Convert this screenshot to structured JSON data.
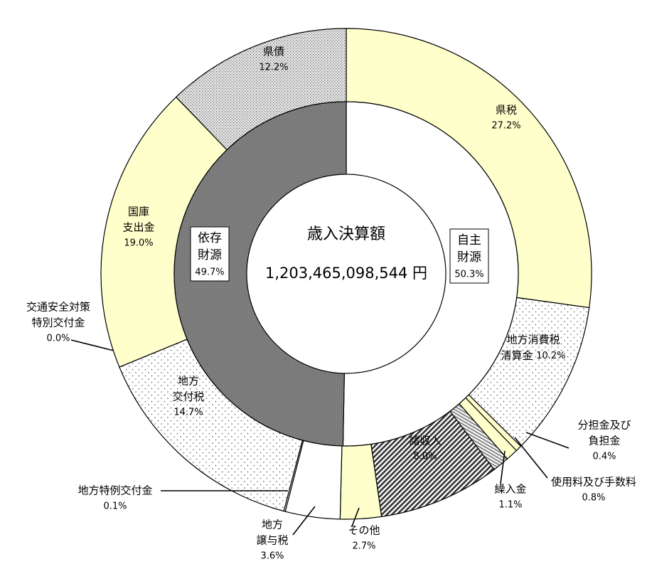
{
  "chart_data": {
    "type": "donut",
    "center_title": "歳入決算額",
    "center_total": "1,203,465,098,544 円",
    "categories": [
      [
        "県税"
      ],
      [
        "地方消費税",
        "清算金"
      ],
      [
        "分担金及び",
        "負担金"
      ],
      [
        "使用料及び手数料"
      ],
      [
        "繰入金"
      ],
      [
        "諸収入"
      ],
      [
        "その他"
      ],
      [
        "地方",
        "譲与税"
      ],
      [
        "地方特例交付金"
      ],
      [
        "地方",
        "交付税"
      ],
      [
        "交通安全対策",
        "特別交付金"
      ],
      [
        "国庫",
        "支出金"
      ],
      [
        "県債"
      ]
    ],
    "values": [
      27.2,
      10.2,
      0.4,
      0.8,
      1.1,
      8.0,
      2.7,
      3.6,
      0.1,
      14.7,
      0.0,
      19.0,
      12.2
    ],
    "value_labels": [
      "27.2%",
      "10.2%",
      "0.4%",
      "0.8%",
      "1.1%",
      "8.0%",
      "2.7%",
      "3.6%",
      "0.1%",
      "14.7%",
      "0.0%",
      "19.0%",
      "12.2%"
    ],
    "fills": [
      "yellow",
      "dots",
      "yellow",
      "yellow",
      "stripes",
      "hatch",
      "yellow",
      "white",
      "white",
      "dots",
      "white",
      "yellow",
      "densedots"
    ],
    "inner": {
      "categories": [
        [
          "自主",
          "財源"
        ],
        [
          "依存",
          "財源"
        ]
      ],
      "values": [
        50.3,
        49.7
      ],
      "value_labels": [
        "50.3%",
        "49.7%"
      ],
      "fills": [
        "white",
        "dark"
      ]
    }
  }
}
